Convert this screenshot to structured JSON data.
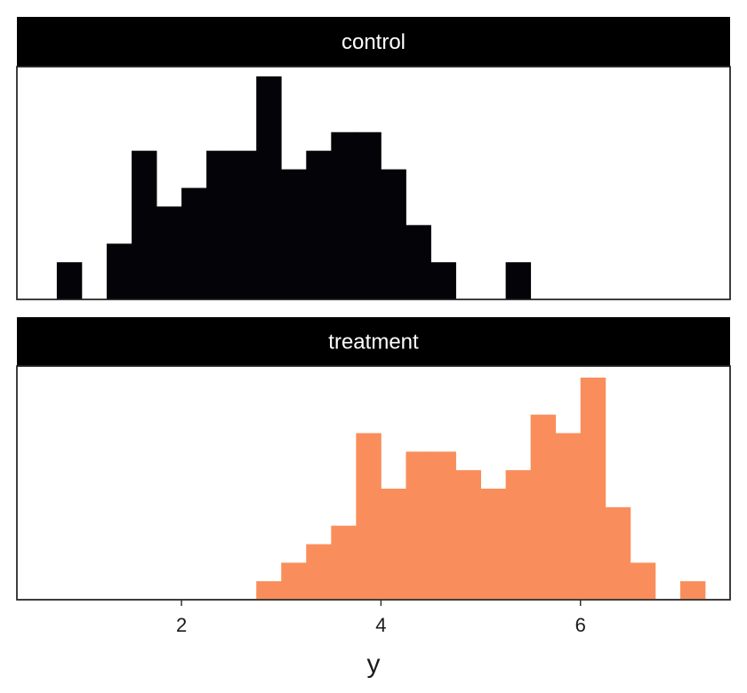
{
  "chart_data": {
    "type": "bar",
    "subtype": "faceted-histogram",
    "xlabel": "y",
    "ylabel": "",
    "xlim": [
      0.35,
      7.5
    ],
    "x_ticks": [
      2,
      4,
      6
    ],
    "bin_width": 0.25,
    "grid": false,
    "legend": "none",
    "facets": [
      {
        "name": "control",
        "color": "#040307",
        "bins": [
          {
            "x0": 0.75,
            "x1": 1.0,
            "count": 2
          },
          {
            "x0": 1.25,
            "x1": 1.5,
            "count": 3
          },
          {
            "x0": 1.5,
            "x1": 1.75,
            "count": 8
          },
          {
            "x0": 1.75,
            "x1": 2.0,
            "count": 5
          },
          {
            "x0": 2.0,
            "x1": 2.25,
            "count": 6
          },
          {
            "x0": 2.25,
            "x1": 2.5,
            "count": 8
          },
          {
            "x0": 2.5,
            "x1": 2.75,
            "count": 8
          },
          {
            "x0": 2.75,
            "x1": 3.0,
            "count": 12
          },
          {
            "x0": 3.0,
            "x1": 3.25,
            "count": 7
          },
          {
            "x0": 3.25,
            "x1": 3.5,
            "count": 8
          },
          {
            "x0": 3.5,
            "x1": 3.75,
            "count": 9
          },
          {
            "x0": 3.75,
            "x1": 4.0,
            "count": 9
          },
          {
            "x0": 4.0,
            "x1": 4.25,
            "count": 7
          },
          {
            "x0": 4.25,
            "x1": 4.5,
            "count": 4
          },
          {
            "x0": 4.5,
            "x1": 4.75,
            "count": 2
          },
          {
            "x0": 5.25,
            "x1": 5.5,
            "count": 2
          }
        ]
      },
      {
        "name": "treatment",
        "color": "#F98E5C",
        "bins": [
          {
            "x0": 2.75,
            "x1": 3.0,
            "count": 1
          },
          {
            "x0": 3.0,
            "x1": 3.25,
            "count": 2
          },
          {
            "x0": 3.25,
            "x1": 3.5,
            "count": 3
          },
          {
            "x0": 3.5,
            "x1": 3.75,
            "count": 4
          },
          {
            "x0": 3.75,
            "x1": 4.0,
            "count": 9
          },
          {
            "x0": 4.0,
            "x1": 4.25,
            "count": 6
          },
          {
            "x0": 4.25,
            "x1": 4.5,
            "count": 8
          },
          {
            "x0": 4.5,
            "x1": 4.75,
            "count": 8
          },
          {
            "x0": 4.75,
            "x1": 5.0,
            "count": 7
          },
          {
            "x0": 5.0,
            "x1": 5.25,
            "count": 6
          },
          {
            "x0": 5.25,
            "x1": 5.5,
            "count": 7
          },
          {
            "x0": 5.5,
            "x1": 5.75,
            "count": 10
          },
          {
            "x0": 5.75,
            "x1": 6.0,
            "count": 9
          },
          {
            "x0": 6.0,
            "x1": 6.25,
            "count": 12
          },
          {
            "x0": 6.25,
            "x1": 6.5,
            "count": 5
          },
          {
            "x0": 6.5,
            "x1": 6.75,
            "count": 2
          },
          {
            "x0": 7.0,
            "x1": 7.25,
            "count": 1
          }
        ]
      }
    ]
  }
}
